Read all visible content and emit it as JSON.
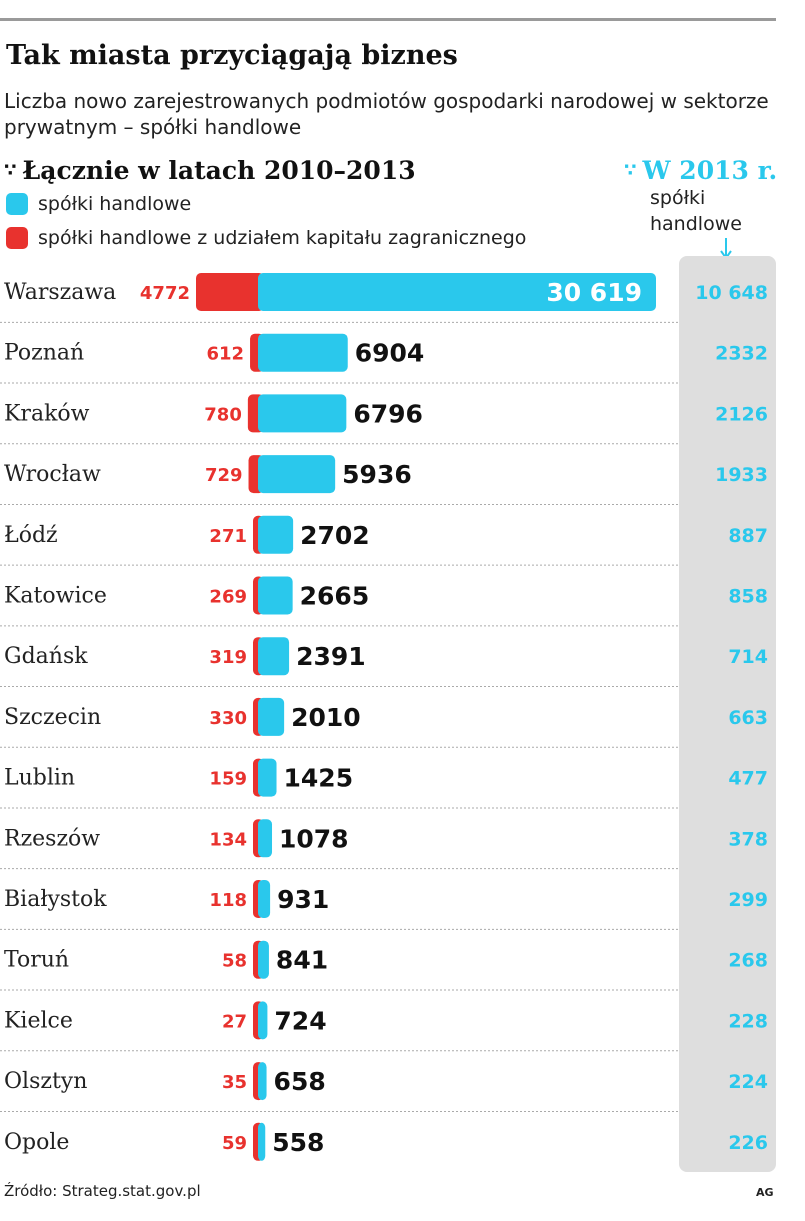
{
  "title": "Tak miasta przyciągają biznes",
  "subtitle": "Liczba nowo zarejestrowanych podmiotów gospodarki narodowej w sektorze prywatnym – spółki handlowe",
  "section_left": "Łącznie w latach 2010–2013",
  "section_right": "W 2013 r.",
  "right_subheader_line1": "spółki",
  "right_subheader_line2": "handlowe",
  "source": "Źródło: Strateg.stat.gov.pl",
  "credit": "AG",
  "colors": {
    "cyan": "#2ac8ec",
    "red": "#e8322e",
    "panel": "#dedede"
  },
  "chart_data": {
    "type": "bar",
    "orientation": "horizontal",
    "stacked": true,
    "legend_position": "top-left",
    "categories": [
      "Warszawa",
      "Poznań",
      "Kraków",
      "Wrocław",
      "Łódź",
      "Katowice",
      "Gdańsk",
      "Szczecin",
      "Lublin",
      "Rzeszów",
      "Białystok",
      "Toruń",
      "Kielce",
      "Olsztyn",
      "Opole"
    ],
    "series": [
      {
        "name": "spółki handlowe z udziałem kapitału zagranicznego",
        "color": "#e8322e",
        "values": [
          4772,
          612,
          780,
          729,
          271,
          269,
          319,
          330,
          159,
          134,
          118,
          58,
          27,
          35,
          59
        ],
        "labels": [
          "4772",
          "612",
          "780",
          "729",
          "271",
          "269",
          "319",
          "330",
          "159",
          "134",
          "118",
          "58",
          "27",
          "35",
          "59"
        ]
      },
      {
        "name": "spółki handlowe",
        "color": "#2ac8ec",
        "values": [
          30619,
          6904,
          6796,
          5936,
          2702,
          2665,
          2391,
          2010,
          1425,
          1078,
          931,
          841,
          724,
          658,
          558
        ],
        "labels": [
          "30 619",
          "6904",
          "6796",
          "5936",
          "2702",
          "2665",
          "2391",
          "2010",
          "1425",
          "1078",
          "931",
          "841",
          "724",
          "658",
          "558"
        ]
      }
    ],
    "column_2013": {
      "values": [
        10648,
        2332,
        2126,
        1933,
        887,
        858,
        714,
        663,
        477,
        378,
        299,
        268,
        228,
        224,
        226
      ],
      "labels": [
        "10 648",
        "2332",
        "2126",
        "1933",
        "887",
        "858",
        "714",
        "663",
        "477",
        "378",
        "299",
        "268",
        "228",
        "224",
        "226"
      ]
    }
  }
}
